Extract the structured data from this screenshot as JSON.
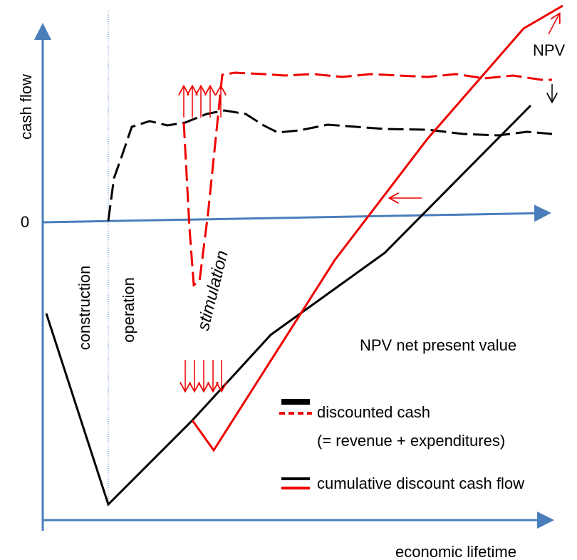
{
  "labels": {
    "y_axis": "cash flow",
    "zero": "0",
    "x_axis": "economic lifetime",
    "construction": "construction",
    "operation": "operation",
    "stimulation": "stimulation",
    "npv": "NPV",
    "npv_note": "NPV net present value"
  },
  "legend": [
    {
      "label": "discounted cash",
      "sublabel": "(= revenue + expenditures)"
    },
    {
      "label": "cumulative discount cash flow"
    }
  ]
}
